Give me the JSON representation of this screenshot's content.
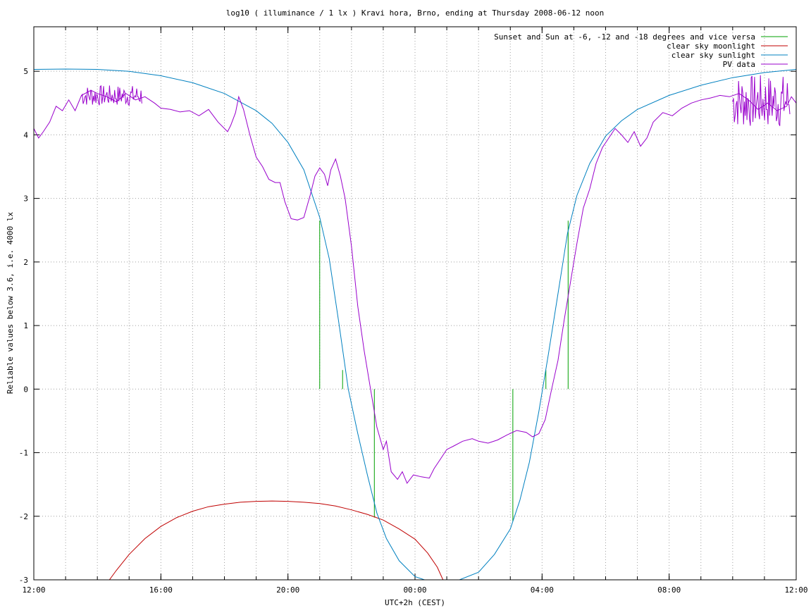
{
  "chart_data": {
    "type": "line",
    "title": "log10 ( illuminance / 1 lx ) Kravi hora, Brno, ending at Thursday 2008-06-12 noon",
    "xlabel": "UTC+2h (CEST)",
    "ylabel": "Reliable values below 3.6, i.e. 4000 lx",
    "xlim": [
      12,
      36
    ],
    "ylim": [
      -3,
      5.7
    ],
    "grid": true,
    "legend_position": "top-right",
    "x_ticks": [
      {
        "value": 12,
        "label": "12:00"
      },
      {
        "value": 16,
        "label": "16:00"
      },
      {
        "value": 20,
        "label": "20:00"
      },
      {
        "value": 24,
        "label": "00:00"
      },
      {
        "value": 28,
        "label": "04:00"
      },
      {
        "value": 32,
        "label": "08:00"
      },
      {
        "value": 36,
        "label": "12:00"
      }
    ],
    "y_ticks": [
      {
        "value": -3,
        "label": "-3"
      },
      {
        "value": -2,
        "label": "-2"
      },
      {
        "value": -1,
        "label": "-1"
      },
      {
        "value": 0,
        "label": "0"
      },
      {
        "value": 1,
        "label": "1"
      },
      {
        "value": 2,
        "label": "2"
      },
      {
        "value": 3,
        "label": "3"
      },
      {
        "value": 4,
        "label": "4"
      },
      {
        "value": 5,
        "label": "5"
      }
    ],
    "series": [
      {
        "name": "Sunset and Sun at -6, -12 and -18 degrees and vice versa",
        "color": "#00a000",
        "style": "impulses",
        "points": [
          [
            21.0,
            2.65
          ],
          [
            21.72,
            0.3
          ],
          [
            22.72,
            -2.02
          ],
          [
            27.08,
            -2.08
          ],
          [
            28.12,
            0.3
          ],
          [
            28.82,
            2.65
          ]
        ]
      },
      {
        "name": "clear sky moonlight",
        "color": "#c00000",
        "points": [
          [
            14.38,
            -3.0
          ],
          [
            14.6,
            -2.85
          ],
          [
            15.0,
            -2.6
          ],
          [
            15.5,
            -2.35
          ],
          [
            16.0,
            -2.16
          ],
          [
            16.5,
            -2.02
          ],
          [
            17.0,
            -1.92
          ],
          [
            17.5,
            -1.85
          ],
          [
            18.0,
            -1.81
          ],
          [
            18.5,
            -1.78
          ],
          [
            19.0,
            -1.765
          ],
          [
            19.5,
            -1.76
          ],
          [
            20.0,
            -1.765
          ],
          [
            20.5,
            -1.78
          ],
          [
            21.0,
            -1.8
          ],
          [
            21.5,
            -1.84
          ],
          [
            22.0,
            -1.9
          ],
          [
            22.5,
            -1.97
          ],
          [
            23.0,
            -2.06
          ],
          [
            23.5,
            -2.2
          ],
          [
            24.0,
            -2.36
          ],
          [
            24.4,
            -2.58
          ],
          [
            24.7,
            -2.8
          ],
          [
            24.88,
            -3.0
          ]
        ]
      },
      {
        "name": "clear sky sunlight",
        "color": "#0080c0",
        "points": [
          [
            12.0,
            5.03
          ],
          [
            13.0,
            5.035
          ],
          [
            14.0,
            5.03
          ],
          [
            15.0,
            5.0
          ],
          [
            16.0,
            4.93
          ],
          [
            17.0,
            4.82
          ],
          [
            18.0,
            4.65
          ],
          [
            19.0,
            4.38
          ],
          [
            19.5,
            4.18
          ],
          [
            20.0,
            3.88
          ],
          [
            20.5,
            3.45
          ],
          [
            21.0,
            2.7
          ],
          [
            21.3,
            2.05
          ],
          [
            21.6,
            1.05
          ],
          [
            21.9,
            0.0
          ],
          [
            22.2,
            -0.7
          ],
          [
            22.5,
            -1.35
          ],
          [
            22.8,
            -1.95
          ],
          [
            23.1,
            -2.35
          ],
          [
            23.5,
            -2.7
          ],
          [
            24.0,
            -2.95
          ],
          [
            24.3,
            -3.0
          ]
        ]
      },
      {
        "name": "clear sky sunlight (morning)",
        "color": "#0080c0",
        "points": [
          [
            25.4,
            -3.0
          ],
          [
            26.0,
            -2.88
          ],
          [
            26.5,
            -2.6
          ],
          [
            27.0,
            -2.2
          ],
          [
            27.3,
            -1.75
          ],
          [
            27.6,
            -1.15
          ],
          [
            27.9,
            -0.35
          ],
          [
            28.2,
            0.55
          ],
          [
            28.5,
            1.5
          ],
          [
            28.8,
            2.45
          ],
          [
            29.1,
            3.05
          ],
          [
            29.5,
            3.55
          ],
          [
            30.0,
            3.98
          ],
          [
            30.5,
            4.22
          ],
          [
            31.0,
            4.4
          ],
          [
            32.0,
            4.62
          ],
          [
            33.0,
            4.78
          ],
          [
            34.0,
            4.9
          ],
          [
            35.0,
            4.98
          ],
          [
            36.0,
            5.03
          ]
        ]
      },
      {
        "name": "PV data",
        "color": "#9900cc",
        "points": [
          [
            12.0,
            4.1
          ],
          [
            12.15,
            3.95
          ],
          [
            12.3,
            4.05
          ],
          [
            12.5,
            4.2
          ],
          [
            12.7,
            4.45
          ],
          [
            12.9,
            4.38
          ],
          [
            13.1,
            4.55
          ],
          [
            13.3,
            4.38
          ],
          [
            13.5,
            4.62
          ],
          [
            13.8,
            4.7
          ],
          [
            14.0,
            4.65
          ],
          [
            14.3,
            4.6
          ],
          [
            14.6,
            4.52
          ],
          [
            14.9,
            4.65
          ],
          [
            15.2,
            4.55
          ],
          [
            15.5,
            4.6
          ],
          [
            15.8,
            4.5
          ],
          [
            16.0,
            4.42
          ],
          [
            16.3,
            4.4
          ],
          [
            16.6,
            4.36
          ],
          [
            16.9,
            4.38
          ],
          [
            17.2,
            4.3
          ],
          [
            17.5,
            4.4
          ],
          [
            17.8,
            4.2
          ],
          [
            18.1,
            4.05
          ],
          [
            18.2,
            4.15
          ],
          [
            18.35,
            4.35
          ],
          [
            18.45,
            4.6
          ],
          [
            18.6,
            4.4
          ],
          [
            18.8,
            4.0
          ],
          [
            19.0,
            3.65
          ],
          [
            19.2,
            3.5
          ],
          [
            19.4,
            3.3
          ],
          [
            19.6,
            3.25
          ],
          [
            19.75,
            3.25
          ],
          [
            19.9,
            2.95
          ],
          [
            20.1,
            2.68
          ],
          [
            20.3,
            2.66
          ],
          [
            20.5,
            2.7
          ],
          [
            20.7,
            3.05
          ],
          [
            20.85,
            3.35
          ],
          [
            21.0,
            3.48
          ],
          [
            21.15,
            3.38
          ],
          [
            21.25,
            3.2
          ],
          [
            21.35,
            3.45
          ],
          [
            21.5,
            3.62
          ],
          [
            21.65,
            3.35
          ],
          [
            21.8,
            3.0
          ],
          [
            22.0,
            2.25
          ],
          [
            22.2,
            1.3
          ],
          [
            22.4,
            0.6
          ],
          [
            22.6,
            0.0
          ],
          [
            22.8,
            -0.6
          ],
          [
            23.0,
            -0.95
          ],
          [
            23.1,
            -0.82
          ],
          [
            23.25,
            -1.3
          ],
          [
            23.45,
            -1.42
          ],
          [
            23.6,
            -1.3
          ],
          [
            23.75,
            -1.48
          ],
          [
            23.95,
            -1.35
          ],
          [
            24.2,
            -1.38
          ],
          [
            24.45,
            -1.4
          ],
          [
            24.6,
            -1.25
          ],
          [
            24.8,
            -1.1
          ],
          [
            25.0,
            -0.95
          ],
          [
            25.2,
            -0.9
          ],
          [
            25.5,
            -0.82
          ],
          [
            25.8,
            -0.78
          ],
          [
            26.0,
            -0.82
          ],
          [
            26.3,
            -0.85
          ],
          [
            26.6,
            -0.8
          ],
          [
            26.9,
            -0.72
          ],
          [
            27.2,
            -0.65
          ],
          [
            27.5,
            -0.68
          ],
          [
            27.7,
            -0.75
          ],
          [
            27.9,
            -0.7
          ],
          [
            28.1,
            -0.48
          ],
          [
            28.3,
            0.0
          ],
          [
            28.5,
            0.45
          ],
          [
            28.7,
            1.1
          ],
          [
            28.9,
            1.7
          ],
          [
            29.1,
            2.3
          ],
          [
            29.3,
            2.85
          ],
          [
            29.5,
            3.15
          ],
          [
            29.7,
            3.55
          ],
          [
            29.9,
            3.8
          ],
          [
            30.1,
            3.95
          ],
          [
            30.3,
            4.1
          ],
          [
            30.5,
            4.0
          ],
          [
            30.7,
            3.88
          ],
          [
            30.9,
            4.05
          ],
          [
            31.1,
            3.82
          ],
          [
            31.3,
            3.95
          ],
          [
            31.5,
            4.2
          ],
          [
            31.8,
            4.35
          ],
          [
            32.1,
            4.3
          ],
          [
            32.4,
            4.42
          ],
          [
            32.7,
            4.5
          ],
          [
            33.0,
            4.55
          ],
          [
            33.3,
            4.58
          ],
          [
            33.6,
            4.62
          ],
          [
            33.9,
            4.6
          ],
          [
            34.2,
            4.65
          ],
          [
            34.5,
            4.55
          ],
          [
            34.8,
            4.4
          ],
          [
            35.1,
            4.5
          ],
          [
            35.4,
            4.38
          ],
          [
            35.7,
            4.45
          ],
          [
            35.85,
            4.6
          ],
          [
            36.0,
            4.5
          ]
        ]
      }
    ],
    "noisy_segments": [
      {
        "series": "PV data",
        "x_from": 13.5,
        "x_to": 15.4,
        "low": 4.45,
        "high": 4.78
      },
      {
        "series": "PV data",
        "x_from": 34.0,
        "x_to": 35.8,
        "low": 4.1,
        "high": 4.95
      }
    ]
  }
}
